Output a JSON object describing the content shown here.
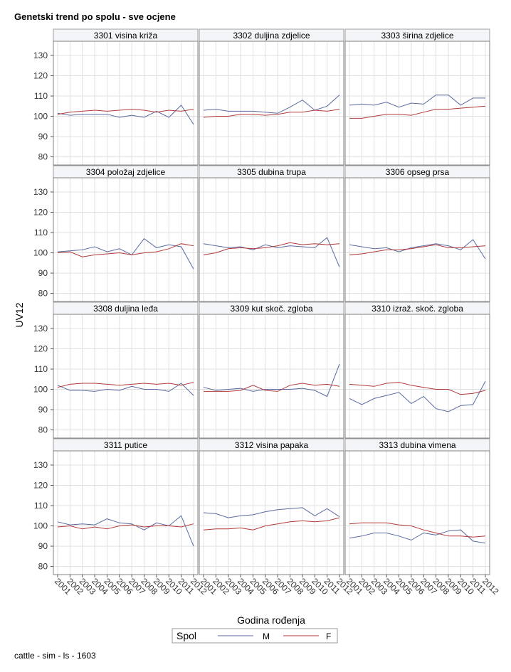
{
  "title": "Genetski trend po spolu - sve ocjene",
  "footnote": "cattle - sim - ls - 1603",
  "colors": {
    "M": "#5a6aa0",
    "F": "#b23a3a",
    "grid": "#e0e0e0",
    "frame": "#808080",
    "header_bg": "#f4f5f8"
  },
  "chart_data": {
    "type": "line",
    "xlabel": "Godina rođenja",
    "ylabel": "UV12",
    "x": [
      2001,
      2002,
      2003,
      2004,
      2005,
      2006,
      2007,
      2008,
      2009,
      2010,
      2011,
      2012
    ],
    "x_tick_labels": [
      "2001",
      "2002",
      "2003",
      "2004",
      "2005",
      "2006",
      "2007",
      "2008",
      "2009",
      "2010",
      "2011",
      "2012"
    ],
    "ylim": [
      76,
      137
    ],
    "y_ticks": [
      80,
      90,
      100,
      110,
      120,
      130
    ],
    "grid": true,
    "legend": {
      "title": "Spol",
      "position": "bottom",
      "entries": [
        "M",
        "F"
      ]
    },
    "panels": [
      {
        "title": "3301 visina križa",
        "series": [
          {
            "name": "M",
            "values": [
              101.5,
              100.5,
              101,
              101,
              101,
              99.5,
              100.5,
              99.5,
              102.5,
              99.5,
              105.5,
              96
            ]
          },
          {
            "name": "F",
            "values": [
              101,
              102,
              102.5,
              103,
              102.5,
              103,
              103.5,
              103,
              102,
              103,
              102.5,
              103.5
            ]
          }
        ]
      },
      {
        "title": "3302 duljina zdjelice",
        "series": [
          {
            "name": "M",
            "values": [
              103,
              103.5,
              102.5,
              102.5,
              102.5,
              102,
              101.5,
              104.5,
              108,
              103,
              105,
              110.5
            ]
          },
          {
            "name": "F",
            "values": [
              99.5,
              100,
              100,
              101,
              101,
              100.5,
              101,
              102,
              102,
              103,
              102.5,
              103.5
            ]
          }
        ]
      },
      {
        "title": "3303 širina zdjelice",
        "series": [
          {
            "name": "M",
            "values": [
              105.5,
              106,
              105.5,
              107,
              104.5,
              106.5,
              106,
              110.5,
              110.5,
              105.5,
              109,
              109
            ]
          },
          {
            "name": "F",
            "values": [
              99,
              99,
              100,
              101,
              101,
              100.5,
              102,
              103.5,
              103.5,
              104,
              104.5,
              105
            ]
          }
        ]
      },
      {
        "title": "3304 položaj zdjelice",
        "series": [
          {
            "name": "M",
            "values": [
              100.5,
              101,
              101.5,
              103,
              100.5,
              102,
              99,
              107,
              102.5,
              104,
              103,
              92
            ]
          },
          {
            "name": "F",
            "values": [
              100,
              100.5,
              98,
              99,
              99.5,
              100,
              99,
              100,
              100.5,
              102,
              104.5,
              103.5
            ]
          }
        ]
      },
      {
        "title": "3305 dubina trupa",
        "series": [
          {
            "name": "M",
            "values": [
              104.5,
              103.5,
              102.5,
              103,
              101.5,
              104,
              102.5,
              103.5,
              103,
              102.5,
              107.5,
              93
            ]
          },
          {
            "name": "F",
            "values": [
              99,
              100,
              102,
              102.5,
              102,
              102.5,
              103.5,
              105,
              104,
              104.5,
              104,
              104.5
            ]
          }
        ]
      },
      {
        "title": "3306 opseg prsa",
        "series": [
          {
            "name": "M",
            "values": [
              104,
              103,
              102,
              102.5,
              100.5,
              102.5,
              103.5,
              104.5,
              103.5,
              101.5,
              106.5,
              97
            ]
          },
          {
            "name": "F",
            "values": [
              99,
              99.5,
              100.5,
              101.5,
              101.5,
              102,
              103,
              104,
              102.5,
              102.5,
              103,
              103.5
            ]
          }
        ]
      },
      {
        "title": "3308 duljina leđa",
        "series": [
          {
            "name": "M",
            "values": [
              102,
              99.5,
              99.5,
              99,
              100,
              99.5,
              101.5,
              100,
              100,
              99,
              103,
              97
            ]
          },
          {
            "name": "F",
            "values": [
              101,
              102.5,
              103,
              103,
              102.5,
              102,
              102.5,
              103,
              102.5,
              103,
              102,
              103.5
            ]
          }
        ]
      },
      {
        "title": "3309 kut skoč. zgloba",
        "series": [
          {
            "name": "M",
            "values": [
              101,
              99.5,
              100,
              100.5,
              99,
              100,
              100,
              100,
              100.5,
              99.5,
              96.5,
              112.5
            ]
          },
          {
            "name": "F",
            "values": [
              99,
              99,
              99,
              99.5,
              102,
              99.5,
              99,
              102,
              103,
              102,
              102.5,
              101.5
            ]
          }
        ]
      },
      {
        "title": "3310 izraž. skoč. zgloba",
        "series": [
          {
            "name": "M",
            "values": [
              95.5,
              92.5,
              95.5,
              97,
              98.5,
              93,
              96.5,
              90.5,
              89,
              92,
              92.5,
              104
            ]
          },
          {
            "name": "F",
            "values": [
              102.5,
              102,
              101.5,
              103,
              103.5,
              102,
              101,
              100,
              100,
              97.5,
              98,
              99.5
            ]
          }
        ]
      },
      {
        "title": "3311 putice",
        "series": [
          {
            "name": "M",
            "values": [
              102,
              100.5,
              101,
              100.5,
              103.5,
              101.5,
              101,
              98,
              101.5,
              100,
              105,
              90
            ]
          },
          {
            "name": "F",
            "values": [
              99.5,
              100,
              98.5,
              99.5,
              98.5,
              100,
              100.5,
              99.5,
              100,
              100,
              99.5,
              101
            ]
          }
        ]
      },
      {
        "title": "3312 visina papaka",
        "series": [
          {
            "name": "M",
            "values": [
              106.5,
              106,
              104,
              105,
              105.5,
              107,
              108,
              108.5,
              109,
              105,
              108.5,
              104.5
            ]
          },
          {
            "name": "F",
            "values": [
              98,
              98.5,
              98.5,
              99,
              98,
              100,
              101,
              102,
              102.5,
              102,
              102.5,
              104
            ]
          }
        ]
      },
      {
        "title": "3313 dubina vimena",
        "series": [
          {
            "name": "M",
            "values": [
              94,
              95,
              96.5,
              96.5,
              95,
              93,
              96.5,
              95.5,
              97.5,
              98,
              92.5,
              91.5
            ]
          },
          {
            "name": "F",
            "values": [
              101,
              101.5,
              101.5,
              101.5,
              100.5,
              100,
              98,
              96.5,
              95,
              95,
              94.5,
              95
            ]
          }
        ]
      }
    ]
  }
}
